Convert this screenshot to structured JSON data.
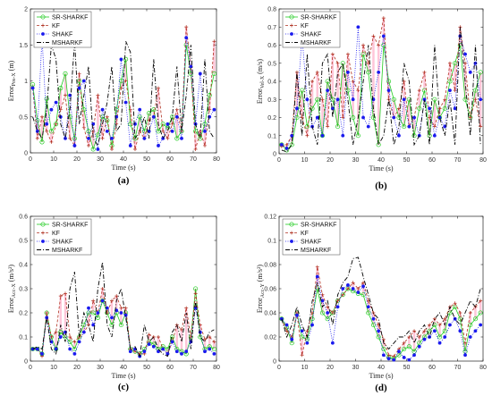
{
  "figure": {
    "colors": {
      "SR-SHARKF": "#22cc22",
      "KF": "#b03020",
      "SHAKF": "#1a1aee",
      "MSHARKF": "#000000",
      "residual": "#ff99bb"
    },
    "legend_placement": "top-left"
  },
  "chart_data": [
    {
      "type": "line",
      "panel_label": "(a)",
      "xlabel": "Time (s)",
      "ylabel_main": "Error",
      "ylabel_sub": "Pos-X",
      "ylabel_unit": "(m)",
      "xlim": [
        0,
        80
      ],
      "ylim": [
        0,
        2
      ],
      "xticks": [
        0,
        10,
        20,
        30,
        40,
        50,
        60,
        70,
        80
      ],
      "yticks": [
        0,
        0.5,
        1,
        1.5,
        2
      ],
      "ytick_labels": [
        "0",
        "0.5",
        "1",
        "1.5",
        "2"
      ],
      "legend_placement": "top-left",
      "x": [
        1,
        3,
        5,
        7,
        9,
        11,
        13,
        15,
        17,
        19,
        21,
        23,
        25,
        27,
        29,
        31,
        33,
        35,
        37,
        39,
        41,
        43,
        45,
        47,
        49,
        51,
        53,
        55,
        57,
        59,
        61,
        63,
        65,
        67,
        69,
        71,
        73,
        75,
        77,
        79
      ],
      "series": [
        {
          "name": "SR-SHARKF",
          "values": [
            0.95,
            0.45,
            0.15,
            0.75,
            0.3,
            0.4,
            0.9,
            1.1,
            0.5,
            0.2,
            1.0,
            0.6,
            0.3,
            0.05,
            0.25,
            0.5,
            0.45,
            0.1,
            0.6,
            1.0,
            1.3,
            0.4,
            0.2,
            0.5,
            0.3,
            0.55,
            0.6,
            0.3,
            0.4,
            0.35,
            0.5,
            0.2,
            0.3,
            1.5,
            1.1,
            0.3,
            0.2,
            0.4,
            0.8,
            1.1
          ]
        },
        {
          "name": "KF",
          "values": [
            0.9,
            0.2,
            0.5,
            0.3,
            0.15,
            0.4,
            0.6,
            0.8,
            0.2,
            0.1,
            1.1,
            0.35,
            0.1,
            0.3,
            0.8,
            0.2,
            0.5,
            0.05,
            0.4,
            0.9,
            1.0,
            0.6,
            0.05,
            0.3,
            0.2,
            0.45,
            0.5,
            0.9,
            0.3,
            0.2,
            0.4,
            0.6,
            0.3,
            1.75,
            1.2,
            0.05,
            0.3,
            0.1,
            0.6,
            1.55
          ]
        },
        {
          "name": "SHAKF",
          "values": [
            0.9,
            0.3,
            1.6,
            0.4,
            0.6,
            0.7,
            0.5,
            0.2,
            0.8,
            0.1,
            0.9,
            1.0,
            0.2,
            0.4,
            0.05,
            0.6,
            0.3,
            0.2,
            0.5,
            1.3,
            0.7,
            0.1,
            0.4,
            0.6,
            0.2,
            0.3,
            0.5,
            0.1,
            0.2,
            0.4,
            0.3,
            0.5,
            0.2,
            1.6,
            1.2,
            0.4,
            1.1,
            0.3,
            0.5,
            0.6
          ]
        },
        {
          "name": "MSHARKF",
          "values": [
            0.5,
            0.3,
            0.2,
            0.6,
            1.5,
            1.3,
            0.4,
            0.2,
            0.6,
            1.55,
            0.4,
            0.8,
            1.2,
            0.2,
            0.1,
            0.4,
            0.7,
            1.2,
            0.3,
            0.4,
            1.55,
            1.4,
            0.2,
            0.3,
            0.5,
            0.2,
            1.3,
            0.4,
            0.2,
            0.3,
            0.5,
            1.2,
            0.3,
            0.8,
            1.5,
            0.4,
            0.2,
            1.3,
            0.3,
            0.2
          ]
        }
      ]
    },
    {
      "type": "line",
      "panel_label": "(b)",
      "xlabel": "Time (s)",
      "ylabel_main": "Error",
      "ylabel_sub": "Vel-X",
      "ylabel_unit": "(m/s)",
      "xlim": [
        0,
        80
      ],
      "ylim": [
        0,
        0.8
      ],
      "xticks": [
        0,
        10,
        20,
        30,
        40,
        50,
        60,
        70,
        80
      ],
      "yticks": [
        0,
        0.1,
        0.2,
        0.3,
        0.4,
        0.5,
        0.6,
        0.7,
        0.8
      ],
      "ytick_labels": [
        "0",
        "0.1",
        "0.2",
        "0.3",
        "0.4",
        "0.5",
        "0.6",
        "0.7",
        "0.8"
      ],
      "legend_placement": "top-left",
      "x": [
        1,
        3,
        5,
        7,
        9,
        11,
        13,
        15,
        17,
        19,
        21,
        23,
        25,
        27,
        29,
        31,
        33,
        35,
        37,
        39,
        41,
        43,
        45,
        47,
        49,
        51,
        53,
        55,
        57,
        59,
        61,
        63,
        65,
        67,
        69,
        71,
        73,
        75,
        77,
        79
      ],
      "series": [
        {
          "name": "SR-SHARKF",
          "values": [
            0.05,
            0.02,
            0.05,
            0.2,
            0.35,
            0.15,
            0.25,
            0.3,
            0.1,
            0.4,
            0.3,
            0.15,
            0.5,
            0.35,
            0.2,
            0.1,
            0.55,
            0.45,
            0.2,
            0.05,
            0.6,
            0.4,
            0.3,
            0.2,
            0.15,
            0.3,
            0.1,
            0.25,
            0.35,
            0.1,
            0.3,
            0.2,
            0.25,
            0.4,
            0.5,
            0.6,
            0.3,
            0.2,
            0.35,
            0.45
          ]
        },
        {
          "name": "KF",
          "values": [
            0.04,
            0.05,
            0.1,
            0.45,
            0.2,
            0.1,
            0.4,
            0.45,
            0.3,
            0.15,
            0.55,
            0.5,
            0.2,
            0.55,
            0.4,
            0.35,
            0.6,
            0.5,
            0.65,
            0.6,
            0.75,
            0.3,
            0.2,
            0.25,
            0.4,
            0.15,
            0.2,
            0.35,
            0.45,
            0.2,
            0.15,
            0.25,
            0.3,
            0.5,
            0.35,
            0.7,
            0.5,
            0.2,
            0.3,
            0.15
          ]
        },
        {
          "name": "SHAKF",
          "values": [
            0.05,
            0.03,
            0.1,
            0.25,
            0.65,
            0.3,
            0.15,
            0.2,
            0.1,
            0.35,
            0.25,
            0.3,
            0.1,
            0.45,
            0.3,
            0.7,
            0.2,
            0.15,
            0.3,
            0.45,
            0.65,
            0.35,
            0.2,
            0.1,
            0.3,
            0.15,
            0.2,
            0.1,
            0.3,
            0.25,
            0.1,
            0.2,
            0.15,
            0.35,
            0.25,
            0.65,
            0.55,
            0.45,
            0.5,
            0.3
          ]
        },
        {
          "name": "MSHARKF",
          "values": [
            0.02,
            0.01,
            0.05,
            0.45,
            0.1,
            0.55,
            0.15,
            0.05,
            0.5,
            0.55,
            0.2,
            0.45,
            0.5,
            0.3,
            0.05,
            0.2,
            0.4,
            0.6,
            0.25,
            0.05,
            0.1,
            0.3,
            0.05,
            0.15,
            0.5,
            0.4,
            0.05,
            0.1,
            0.3,
            0.05,
            0.6,
            0.2,
            0.1,
            0.3,
            0.05,
            0.7,
            0.4,
            0.1,
            0.6,
            0.05
          ]
        }
      ]
    },
    {
      "type": "line",
      "panel_label": "(c)",
      "xlabel": "Time (s)",
      "ylabel_main": "Error",
      "ylabel_sub": "Acc-X",
      "ylabel_unit": "(m/s²)",
      "xlim": [
        0,
        80
      ],
      "ylim": [
        0,
        0.6
      ],
      "xticks": [
        0,
        10,
        20,
        30,
        40,
        50,
        60,
        70,
        80
      ],
      "yticks": [
        0,
        0.1,
        0.2,
        0.3,
        0.4,
        0.5,
        0.6
      ],
      "ytick_labels": [
        "0",
        "0.1",
        "0.2",
        "0.3",
        "0.4",
        "0.5",
        "0.6"
      ],
      "legend_placement": "top-left",
      "x": [
        1,
        3,
        5,
        7,
        9,
        11,
        13,
        15,
        17,
        19,
        21,
        23,
        25,
        27,
        29,
        31,
        33,
        35,
        37,
        39,
        41,
        43,
        45,
        47,
        49,
        51,
        53,
        55,
        57,
        59,
        61,
        63,
        65,
        67,
        69,
        71,
        73,
        75,
        77,
        79
      ],
      "series": [
        {
          "name": "SR-SHARKF",
          "values": [
            0.05,
            0.05,
            0.03,
            0.2,
            0.1,
            0.05,
            0.12,
            0.1,
            0.08,
            0.05,
            0.1,
            0.15,
            0.2,
            0.2,
            0.18,
            0.25,
            0.2,
            0.15,
            0.2,
            0.15,
            0.2,
            0.05,
            0.04,
            0.03,
            0.05,
            0.08,
            0.07,
            0.05,
            0.06,
            0.05,
            0.1,
            0.05,
            0.04,
            0.03,
            0.1,
            0.3,
            0.1,
            0.05,
            0.06,
            0.05
          ]
        },
        {
          "name": "KF",
          "values": [
            0.05,
            0.05,
            0.02,
            0.2,
            0.1,
            0.12,
            0.27,
            0.28,
            0.1,
            0.08,
            0.1,
            0.12,
            0.15,
            0.25,
            0.2,
            0.3,
            0.2,
            0.25,
            0.27,
            0.22,
            0.22,
            0.05,
            0.04,
            0.03,
            0.03,
            0.11,
            0.1,
            0.1,
            0.05,
            0.03,
            0.08,
            0.15,
            0.13,
            0.22,
            0.1,
            0.28,
            0.15,
            0.09,
            0.1,
            0.08
          ]
        },
        {
          "name": "SHAKF",
          "values": [
            0.05,
            0.05,
            0.03,
            0.18,
            0.08,
            0.05,
            0.1,
            0.12,
            0.05,
            0.03,
            0.08,
            0.12,
            0.22,
            0.15,
            0.2,
            0.25,
            0.22,
            0.18,
            0.21,
            0.2,
            0.19,
            0.04,
            0.05,
            0.02,
            0.04,
            0.07,
            0.06,
            0.04,
            0.05,
            0.03,
            0.08,
            0.04,
            0.03,
            0.04,
            0.08,
            0.22,
            0.12,
            0.04,
            0.05,
            0.03
          ]
        },
        {
          "name": "MSHARKF",
          "values": [
            0.05,
            0.06,
            0.05,
            0.18,
            0.05,
            0.03,
            0.15,
            0.08,
            0.3,
            0.37,
            0.1,
            0.2,
            0.15,
            0.08,
            0.3,
            0.41,
            0.15,
            0.1,
            0.25,
            0.3,
            0.18,
            0.05,
            0.06,
            0.02,
            0.15,
            0.08,
            0.1,
            0.05,
            0.03,
            0.02,
            0.12,
            0.15,
            0.08,
            0.2,
            0.05,
            0.25,
            0.1,
            0.08,
            0.12,
            0.13
          ]
        }
      ]
    },
    {
      "type": "line",
      "panel_label": "(d)",
      "xlabel": "Time (s)",
      "ylabel_main": "Error",
      "ylabel_sub": "Acc-Y",
      "ylabel_unit": "(m/s²)",
      "xlim": [
        0,
        80
      ],
      "ylim": [
        0,
        0.12
      ],
      "xticks": [
        0,
        10,
        20,
        30,
        40,
        50,
        60,
        70,
        80
      ],
      "yticks": [
        0,
        0.02,
        0.04,
        0.06,
        0.08,
        0.1,
        0.12
      ],
      "ytick_labels": [
        "0",
        "0.02",
        "0.04",
        "0.06",
        "0.08",
        "0.1",
        "0.12"
      ],
      "legend_placement": "top-left",
      "x": [
        1,
        3,
        5,
        7,
        9,
        11,
        13,
        15,
        17,
        19,
        21,
        23,
        25,
        27,
        29,
        31,
        33,
        35,
        37,
        39,
        41,
        43,
        45,
        47,
        49,
        51,
        53,
        55,
        57,
        59,
        61,
        63,
        65,
        67,
        69,
        71,
        73,
        75,
        77,
        79
      ],
      "series": [
        {
          "name": "SR-SHARKF",
          "values": [
            0.035,
            0.028,
            0.015,
            0.04,
            0.02,
            0.018,
            0.035,
            0.06,
            0.04,
            0.035,
            0.04,
            0.05,
            0.055,
            0.06,
            0.058,
            0.056,
            0.055,
            0.04,
            0.03,
            0.02,
            0.01,
            0.003,
            0.002,
            0.005,
            0.01,
            0.012,
            0.008,
            0.015,
            0.02,
            0.025,
            0.03,
            0.02,
            0.025,
            0.04,
            0.045,
            0.035,
            0.008,
            0.03,
            0.035,
            0.04
          ]
        },
        {
          "name": "KF",
          "values": [
            0.035,
            0.025,
            0.02,
            0.04,
            0.005,
            0.025,
            0.04,
            0.078,
            0.055,
            0.045,
            0.04,
            0.05,
            0.055,
            0.06,
            0.065,
            0.06,
            0.065,
            0.05,
            0.04,
            0.03,
            0.018,
            0.005,
            0.004,
            0.01,
            0.015,
            0.02,
            0.025,
            0.02,
            0.025,
            0.03,
            0.035,
            0.03,
            0.035,
            0.045,
            0.048,
            0.04,
            0.015,
            0.04,
            0.045,
            0.05
          ]
        },
        {
          "name": "SHAKF",
          "values": [
            0.035,
            0.03,
            0.018,
            0.038,
            0.025,
            0.015,
            0.03,
            0.07,
            0.05,
            0.04,
            0.015,
            0.045,
            0.06,
            0.063,
            0.06,
            0.057,
            0.062,
            0.045,
            0.035,
            0.025,
            0.005,
            0.002,
            0.001,
            0.008,
            0.003,
            0.001,
            0.005,
            0.012,
            0.018,
            0.02,
            0.025,
            0.015,
            0.02,
            0.03,
            0.035,
            0.025,
            0.005,
            0.02,
            0.025,
            0.03
          ]
        },
        {
          "name": "MSHARKF",
          "values": [
            0.035,
            0.02,
            0.03,
            0.045,
            0.03,
            0.02,
            0.05,
            0.065,
            0.045,
            0.05,
            0.03,
            0.055,
            0.065,
            0.07,
            0.085,
            0.086,
            0.07,
            0.055,
            0.04,
            0.035,
            0.015,
            0.01,
            0.015,
            0.02,
            0.02,
            0.025,
            0.015,
            0.025,
            0.03,
            0.02,
            0.035,
            0.04,
            0.03,
            0.045,
            0.035,
            0.03,
            0.04,
            0.05,
            0.045,
            0.06
          ]
        }
      ]
    }
  ]
}
